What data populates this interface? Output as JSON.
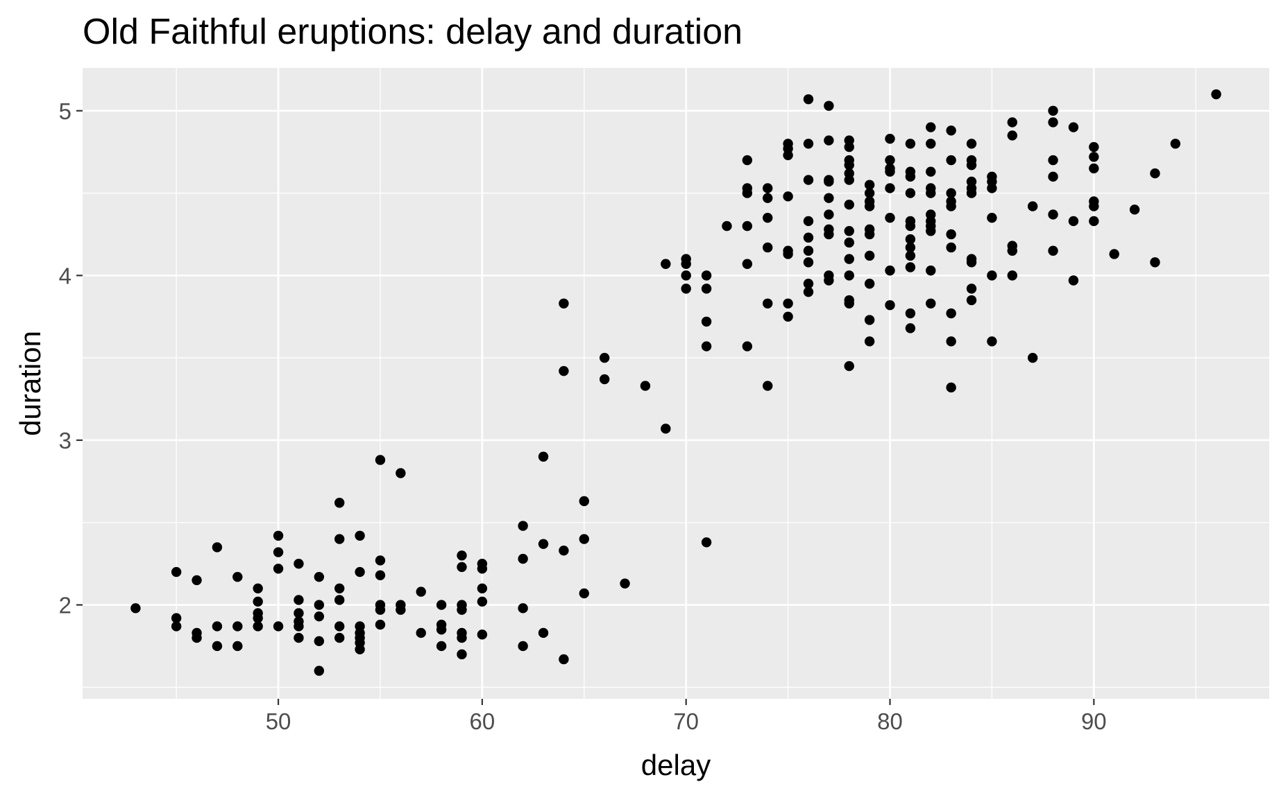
{
  "chart_data": {
    "type": "scatter",
    "title": "Old Faithful eruptions: delay and duration",
    "xlabel": "delay",
    "ylabel": "duration",
    "xlim": [
      40.4,
      98.6
    ],
    "ylim": [
      1.43,
      5.26
    ],
    "x_ticks": [
      50,
      60,
      70,
      80,
      90
    ],
    "x_tick_labels": [
      "50",
      "60",
      "70",
      "80",
      "90"
    ],
    "x_minor_ticks": [
      45,
      55,
      65,
      75,
      85,
      95
    ],
    "y_ticks": [
      2,
      3,
      4,
      5
    ],
    "y_tick_labels": [
      "2",
      "3",
      "4",
      "5"
    ],
    "y_minor_ticks": [
      1.5,
      2.5,
      3.5,
      4.5
    ],
    "grid": true,
    "legend": "none",
    "colors": {
      "panel": "#ebebeb",
      "grid": "#ffffff",
      "point": "#000000",
      "tick_label": "#4d4d4d"
    },
    "points": [
      [
        43,
        1.98
      ],
      [
        45,
        2.2
      ],
      [
        45,
        1.92
      ],
      [
        45,
        1.87
      ],
      [
        46,
        2.15
      ],
      [
        46,
        1.83
      ],
      [
        46,
        1.8
      ],
      [
        47,
        2.35
      ],
      [
        47,
        1.87
      ],
      [
        47,
        1.75
      ],
      [
        48,
        2.17
      ],
      [
        48,
        1.87
      ],
      [
        48,
        1.75
      ],
      [
        49,
        2.1
      ],
      [
        49,
        2.02
      ],
      [
        49,
        1.95
      ],
      [
        49,
        1.92
      ],
      [
        49,
        1.87
      ],
      [
        50,
        2.42
      ],
      [
        50,
        2.32
      ],
      [
        50,
        2.22
      ],
      [
        50,
        1.87
      ],
      [
        51,
        2.25
      ],
      [
        51,
        2.03
      ],
      [
        51,
        1.95
      ],
      [
        51,
        1.9
      ],
      [
        51,
        1.87
      ],
      [
        51,
        1.8
      ],
      [
        52,
        2.17
      ],
      [
        52,
        2.0
      ],
      [
        52,
        1.93
      ],
      [
        52,
        1.78
      ],
      [
        52,
        1.6
      ],
      [
        53,
        2.62
      ],
      [
        53,
        2.4
      ],
      [
        53,
        2.1
      ],
      [
        53,
        2.03
      ],
      [
        53,
        1.87
      ],
      [
        53,
        1.8
      ],
      [
        54,
        2.42
      ],
      [
        54,
        2.2
      ],
      [
        54,
        1.87
      ],
      [
        54,
        1.83
      ],
      [
        54,
        1.8
      ],
      [
        54,
        1.77
      ],
      [
        54,
        1.73
      ],
      [
        55,
        2.88
      ],
      [
        55,
        2.27
      ],
      [
        55,
        2.18
      ],
      [
        55,
        2.0
      ],
      [
        55,
        1.97
      ],
      [
        55,
        1.88
      ],
      [
        56,
        2.8
      ],
      [
        56,
        2.0
      ],
      [
        56,
        1.97
      ],
      [
        57,
        2.08
      ],
      [
        57,
        1.83
      ],
      [
        58,
        2.0
      ],
      [
        58,
        1.88
      ],
      [
        58,
        1.85
      ],
      [
        58,
        1.75
      ],
      [
        59,
        2.3
      ],
      [
        59,
        2.23
      ],
      [
        59,
        2.0
      ],
      [
        59,
        1.97
      ],
      [
        59,
        1.83
      ],
      [
        59,
        1.8
      ],
      [
        59,
        1.7
      ],
      [
        60,
        2.25
      ],
      [
        60,
        2.22
      ],
      [
        60,
        2.1
      ],
      [
        60,
        2.02
      ],
      [
        60,
        1.82
      ],
      [
        62,
        2.48
      ],
      [
        62,
        2.28
      ],
      [
        62,
        1.98
      ],
      [
        62,
        1.75
      ],
      [
        63,
        2.9
      ],
      [
        63,
        2.37
      ],
      [
        63,
        1.83
      ],
      [
        64,
        3.83
      ],
      [
        64,
        3.42
      ],
      [
        64,
        2.33
      ],
      [
        64,
        1.67
      ],
      [
        65,
        2.63
      ],
      [
        65,
        2.4
      ],
      [
        65,
        2.07
      ],
      [
        66,
        3.5
      ],
      [
        66,
        3.37
      ],
      [
        67,
        2.13
      ],
      [
        68,
        3.33
      ],
      [
        69,
        4.07
      ],
      [
        69,
        3.07
      ],
      [
        70,
        4.1
      ],
      [
        70,
        4.07
      ],
      [
        70,
        4.0
      ],
      [
        70,
        3.92
      ],
      [
        71,
        4.0
      ],
      [
        71,
        3.92
      ],
      [
        71,
        3.72
      ],
      [
        71,
        3.57
      ],
      [
        71,
        2.38
      ],
      [
        72,
        4.3
      ],
      [
        73,
        4.7
      ],
      [
        73,
        4.53
      ],
      [
        73,
        4.5
      ],
      [
        73,
        4.3
      ],
      [
        73,
        4.07
      ],
      [
        73,
        3.57
      ],
      [
        74,
        4.53
      ],
      [
        74,
        4.47
      ],
      [
        74,
        4.35
      ],
      [
        74,
        4.17
      ],
      [
        74,
        3.83
      ],
      [
        74,
        3.33
      ],
      [
        75,
        4.8
      ],
      [
        75,
        4.77
      ],
      [
        75,
        4.73
      ],
      [
        75,
        4.48
      ],
      [
        75,
        4.15
      ],
      [
        75,
        4.13
      ],
      [
        75,
        3.83
      ],
      [
        75,
        3.75
      ],
      [
        76,
        5.07
      ],
      [
        76,
        4.8
      ],
      [
        76,
        4.58
      ],
      [
        76,
        4.33
      ],
      [
        76,
        4.23
      ],
      [
        76,
        4.15
      ],
      [
        76,
        4.08
      ],
      [
        76,
        3.95
      ],
      [
        76,
        3.9
      ],
      [
        77,
        5.03
      ],
      [
        77,
        4.82
      ],
      [
        77,
        4.58
      ],
      [
        77,
        4.57
      ],
      [
        77,
        4.47
      ],
      [
        77,
        4.37
      ],
      [
        77,
        4.28
      ],
      [
        77,
        4.25
      ],
      [
        77,
        4.0
      ],
      [
        77,
        3.97
      ],
      [
        78,
        4.82
      ],
      [
        78,
        4.78
      ],
      [
        78,
        4.7
      ],
      [
        78,
        4.67
      ],
      [
        78,
        4.62
      ],
      [
        78,
        4.58
      ],
      [
        78,
        4.43
      ],
      [
        78,
        4.27
      ],
      [
        78,
        4.2
      ],
      [
        78,
        4.1
      ],
      [
        78,
        4.0
      ],
      [
        78,
        3.85
      ],
      [
        78,
        3.83
      ],
      [
        78,
        3.45
      ],
      [
        79,
        4.55
      ],
      [
        79,
        4.5
      ],
      [
        79,
        4.45
      ],
      [
        79,
        4.42
      ],
      [
        79,
        4.28
      ],
      [
        79,
        4.25
      ],
      [
        79,
        4.12
      ],
      [
        79,
        3.95
      ],
      [
        79,
        3.73
      ],
      [
        79,
        3.6
      ],
      [
        80,
        4.83
      ],
      [
        80,
        4.7
      ],
      [
        80,
        4.65
      ],
      [
        80,
        4.63
      ],
      [
        80,
        4.53
      ],
      [
        80,
        4.35
      ],
      [
        80,
        4.03
      ],
      [
        80,
        3.82
      ],
      [
        81,
        4.8
      ],
      [
        81,
        4.63
      ],
      [
        81,
        4.6
      ],
      [
        81,
        4.5
      ],
      [
        81,
        4.33
      ],
      [
        81,
        4.3
      ],
      [
        81,
        4.22
      ],
      [
        81,
        4.17
      ],
      [
        81,
        4.12
      ],
      [
        81,
        4.05
      ],
      [
        81,
        3.77
      ],
      [
        81,
        3.68
      ],
      [
        82,
        4.9
      ],
      [
        82,
        4.8
      ],
      [
        82,
        4.63
      ],
      [
        82,
        4.53
      ],
      [
        82,
        4.5
      ],
      [
        82,
        4.37
      ],
      [
        82,
        4.33
      ],
      [
        82,
        4.3
      ],
      [
        82,
        4.27
      ],
      [
        82,
        4.03
      ],
      [
        82,
        3.83
      ],
      [
        83,
        4.88
      ],
      [
        83,
        4.7
      ],
      [
        83,
        4.5
      ],
      [
        83,
        4.45
      ],
      [
        83,
        4.42
      ],
      [
        83,
        4.25
      ],
      [
        83,
        4.17
      ],
      [
        83,
        3.77
      ],
      [
        83,
        3.6
      ],
      [
        83,
        3.32
      ],
      [
        84,
        4.8
      ],
      [
        84,
        4.7
      ],
      [
        84,
        4.67
      ],
      [
        84,
        4.57
      ],
      [
        84,
        4.53
      ],
      [
        84,
        4.5
      ],
      [
        84,
        4.1
      ],
      [
        84,
        4.08
      ],
      [
        84,
        3.92
      ],
      [
        84,
        3.85
      ],
      [
        85,
        4.6
      ],
      [
        85,
        4.57
      ],
      [
        85,
        4.53
      ],
      [
        85,
        4.35
      ],
      [
        85,
        4.0
      ],
      [
        85,
        3.6
      ],
      [
        86,
        4.93
      ],
      [
        86,
        4.85
      ],
      [
        86,
        4.18
      ],
      [
        86,
        4.15
      ],
      [
        86,
        4.0
      ],
      [
        87,
        4.42
      ],
      [
        87,
        3.5
      ],
      [
        88,
        5.0
      ],
      [
        88,
        4.93
      ],
      [
        88,
        4.7
      ],
      [
        88,
        4.6
      ],
      [
        88,
        4.37
      ],
      [
        88,
        4.15
      ],
      [
        89,
        4.9
      ],
      [
        89,
        4.33
      ],
      [
        89,
        3.97
      ],
      [
        90,
        4.78
      ],
      [
        90,
        4.72
      ],
      [
        90,
        4.65
      ],
      [
        90,
        4.45
      ],
      [
        90,
        4.42
      ],
      [
        90,
        4.33
      ],
      [
        91,
        4.13
      ],
      [
        92,
        4.4
      ],
      [
        93,
        4.62
      ],
      [
        93,
        4.08
      ],
      [
        94,
        4.8
      ],
      [
        96,
        5.1
      ]
    ]
  }
}
